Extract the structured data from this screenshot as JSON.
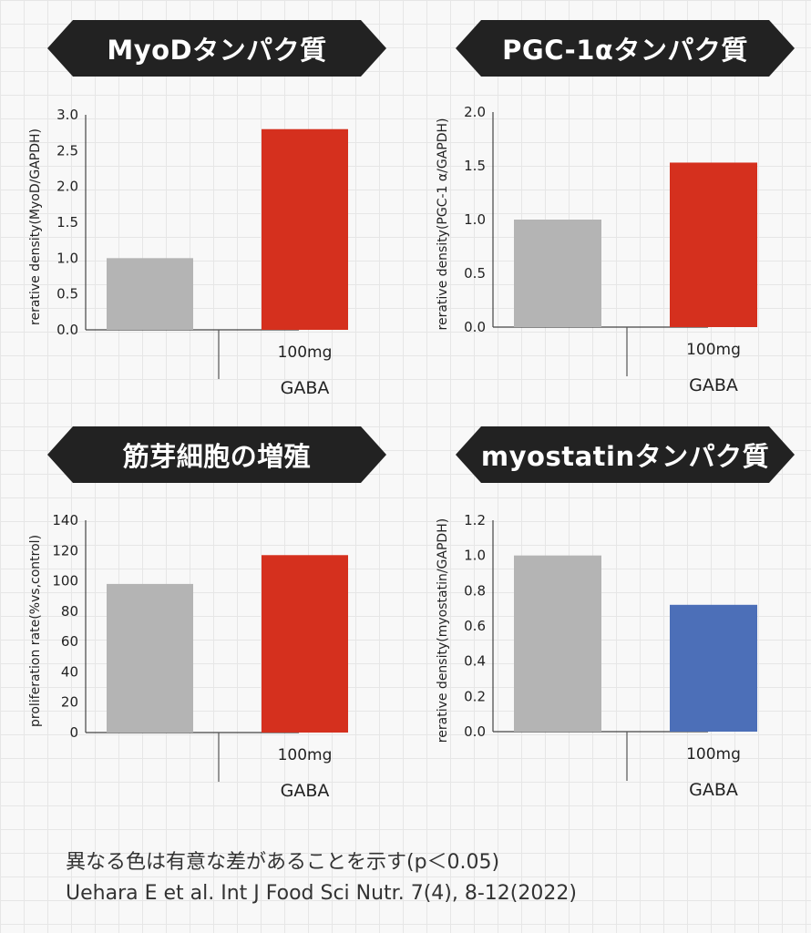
{
  "chart_data": [
    {
      "type": "bar",
      "title": "MyoDタンパク質",
      "ylabel": "rerative density(MyoD/GAPDH)",
      "yticks": [
        "0.0",
        "0.5",
        "1.0",
        "1.5",
        "2.0",
        "2.5",
        "3.0"
      ],
      "ylim": [
        0,
        3.0
      ],
      "categories": [
        "",
        "100mg"
      ],
      "group_label": "GABA",
      "values": [
        1.0,
        2.8
      ],
      "colors": [
        "#b4b4b4",
        "#d5301e"
      ]
    },
    {
      "type": "bar",
      "title": "PGC-1αタンパク質",
      "ylabel": "rerative density(PGC-1 α/GAPDH)",
      "yticks": [
        "0.0",
        "0.5",
        "1.0",
        "1.5",
        "2.0"
      ],
      "ylim": [
        0,
        2.0
      ],
      "categories": [
        "",
        "100mg"
      ],
      "group_label": "GABA",
      "values": [
        1.0,
        1.53
      ],
      "colors": [
        "#b4b4b4",
        "#d5301e"
      ]
    },
    {
      "type": "bar",
      "title": "筋芽細胞の増殖",
      "ylabel": "proliferation rate(%vs,control)",
      "yticks": [
        "0",
        "20",
        "40",
        "60",
        "80",
        "100",
        "120",
        "140"
      ],
      "ylim": [
        0,
        140
      ],
      "categories": [
        "",
        "100mg"
      ],
      "group_label": "GABA",
      "values": [
        98,
        117
      ],
      "colors": [
        "#b4b4b4",
        "#d5301e"
      ]
    },
    {
      "type": "bar",
      "title": "myostatinタンパク質",
      "ylabel": "rerative density(myostatin/GAPDH)",
      "yticks": [
        "0.0",
        "0.2",
        "0.4",
        "0.6",
        "0.8",
        "1.0",
        "1.2"
      ],
      "ylim": [
        0,
        1.2
      ],
      "categories": [
        "",
        "100mg"
      ],
      "group_label": "GABA",
      "values": [
        1.0,
        0.72
      ],
      "colors": [
        "#b4b4b4",
        "#4c6fb8"
      ]
    }
  ],
  "footnotes": {
    "significance": "異なる色は有意な差があることを示す(p＜0.05)",
    "citation": "Uehara E et al. Int J Food Sci Nutr. 7(4), 8-12(2022)"
  }
}
